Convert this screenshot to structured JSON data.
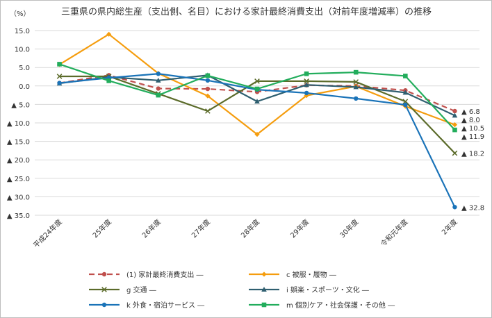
{
  "chart_data": {
    "type": "line",
    "title": "三重県の県内総生産（支出側、名目）における家計最終消費支出（対前年度増減率）の推移",
    "y_unit": "（%）",
    "categories": [
      "平成24年度",
      "25年度",
      "26年度",
      "27年度",
      "28年度",
      "29年度",
      "30年度",
      "令和元年度",
      "2年度"
    ],
    "ylim": [
      -35,
      15
    ],
    "y_ticks": [
      {
        "value": 15,
        "label": "15.0"
      },
      {
        "value": 10,
        "label": "10.0"
      },
      {
        "value": 5,
        "label": "5.0"
      },
      {
        "value": 0,
        "label": "0.0"
      },
      {
        "value": -5,
        "label": "▲ 5.0"
      },
      {
        "value": -10,
        "label": "▲ 10.0"
      },
      {
        "value": -15,
        "label": "▲ 15.0"
      },
      {
        "value": -20,
        "label": "▲ 20.0"
      },
      {
        "value": -25,
        "label": "▲ 25.0"
      },
      {
        "value": -30,
        "label": "▲ 30.0"
      },
      {
        "value": -35,
        "label": "▲ 35.0"
      }
    ],
    "grid": true,
    "legend_position": "bottom",
    "series": [
      {
        "name": "(1) 家計最終消費支出",
        "color": "#c0504d",
        "marker": "circle",
        "dashed": true,
        "values": [
          0.8,
          2.9,
          -0.7,
          -0.8,
          -1.6,
          0.2,
          0.0,
          -1.2,
          -6.8
        ],
        "end_label": "▲ 6.8"
      },
      {
        "name": "c 被服・履物",
        "color": "#f59d0e",
        "marker": "diamond",
        "dashed": false,
        "values": [
          5.8,
          14.0,
          3.4,
          -2.7,
          -13.1,
          -2.6,
          -0.1,
          -5.5,
          -10.5
        ],
        "end_label": "▲ 10.5"
      },
      {
        "name": "g 交通",
        "color": "#5b6b2a",
        "marker": "x",
        "dashed": false,
        "values": [
          2.6,
          2.6,
          -2.1,
          -6.8,
          1.3,
          1.3,
          1.1,
          -4.2,
          -18.2
        ],
        "end_label": "▲ 18.2"
      },
      {
        "name": "i 娯楽・スポーツ・文化",
        "color": "#2f5f70",
        "marker": "triangle",
        "dashed": false,
        "values": [
          0.7,
          2.4,
          1.5,
          2.9,
          -4.2,
          0.3,
          -0.3,
          -1.8,
          -8.0
        ],
        "end_label": "▲ 8.0"
      },
      {
        "name": "k 外食・宿泊サービス",
        "color": "#1a73b8",
        "marker": "circle",
        "dashed": false,
        "values": [
          0.8,
          2.2,
          3.3,
          1.5,
          -1.0,
          -1.9,
          -3.4,
          -5.1,
          -32.8
        ],
        "end_label": "▲ 32.8"
      },
      {
        "name": "m 個別ケア・社会保護・その他",
        "color": "#22ad5c",
        "marker": "square",
        "dashed": false,
        "values": [
          5.9,
          1.4,
          -2.5,
          2.8,
          -0.8,
          3.3,
          3.7,
          2.7,
          -11.9
        ],
        "end_label": "▲ 11.9"
      }
    ],
    "legend_suffix": "―"
  }
}
